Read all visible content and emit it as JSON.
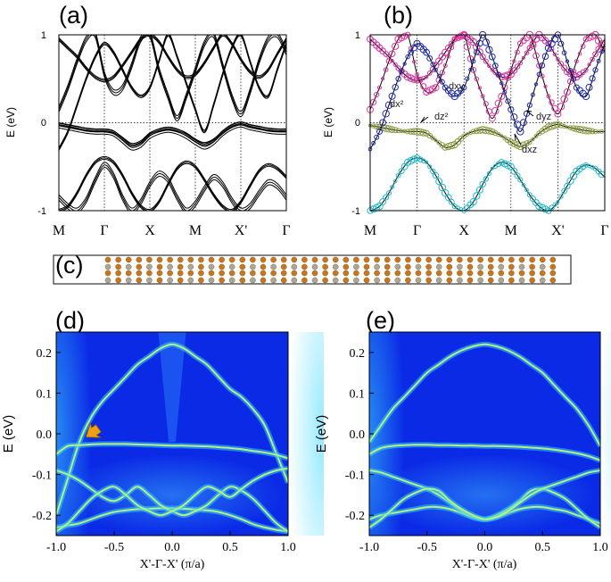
{
  "figure": {
    "panel_labels": [
      "(a)",
      "(b)",
      "(c)",
      "(d)",
      "(e)"
    ],
    "energy_axis_label": "E (eV)",
    "kpath_labels": [
      "M",
      "Γ",
      "X",
      "M",
      "X'",
      "Γ"
    ],
    "slab_colors": {
      "orange": "#c8761e",
      "gray": "#a8a89a"
    },
    "map_colors": {
      "background": "#0a2ae6",
      "band": "#b8f07a",
      "glow": "#33c8ff"
    }
  },
  "chart_data": [
    {
      "panel": "(a)",
      "type": "line",
      "title": "",
      "xlabel": "",
      "ylabel": "E (eV)",
      "ylim": [
        -1,
        1
      ],
      "y_ticks": [
        -1,
        0,
        1
      ],
      "x_tick_labels": [
        "M",
        "Γ",
        "X",
        "M",
        "X'",
        "Γ"
      ],
      "x": [
        0,
        0.2,
        0.4,
        0.6,
        0.8,
        1.0,
        1.2,
        1.4,
        1.6,
        1.8,
        2.0,
        2.2,
        2.4,
        2.6,
        2.8,
        3.0,
        3.2,
        3.4,
        3.6,
        3.8,
        4.0,
        4.2,
        4.4,
        4.6,
        4.8,
        5.0
      ],
      "series": [
        {
          "name": "band1",
          "values": [
            -0.03,
            -0.05,
            -0.07,
            -0.09,
            -0.1,
            -0.1,
            -0.12,
            -0.2,
            -0.28,
            -0.25,
            -0.15,
            -0.1,
            -0.08,
            -0.1,
            -0.15,
            -0.22,
            -0.27,
            -0.22,
            -0.12,
            -0.05,
            -0.02,
            -0.05,
            -0.07,
            -0.09,
            -0.1,
            -0.1
          ]
        },
        {
          "name": "band2",
          "values": [
            -0.02,
            -0.04,
            -0.06,
            -0.08,
            -0.09,
            -0.09,
            -0.11,
            -0.18,
            -0.25,
            -0.22,
            -0.13,
            -0.09,
            -0.07,
            -0.09,
            -0.13,
            -0.2,
            -0.24,
            -0.2,
            -0.11,
            -0.04,
            -0.01,
            -0.04,
            -0.06,
            -0.08,
            -0.09,
            -0.09
          ]
        },
        {
          "name": "band3",
          "values": [
            -0.3,
            -0.1,
            0.2,
            0.5,
            0.75,
            0.9,
            0.8,
            0.6,
            0.4,
            0.3,
            0.4,
            0.7,
            1.0,
            0.75,
            0.45,
            0.15,
            -0.1,
            0.2,
            0.55,
            0.85,
            1.0,
            0.7,
            0.4,
            0.3,
            0.6,
            0.9
          ]
        },
        {
          "name": "band4",
          "values": [
            0.15,
            0.4,
            0.7,
            0.95,
            1.0,
            0.55,
            0.35,
            0.4,
            0.65,
            0.95,
            1.0,
            0.6,
            0.3,
            0.05,
            0.3,
            0.6,
            0.9,
            1.0,
            0.65,
            0.3,
            0.1,
            0.35,
            0.7,
            0.95,
            1.0,
            0.8
          ]
        },
        {
          "name": "band5",
          "values": [
            0.95,
            0.85,
            0.75,
            0.62,
            0.52,
            0.48,
            0.52,
            0.65,
            0.8,
            0.95,
            1.0,
            0.92,
            0.75,
            0.6,
            0.52,
            0.55,
            0.68,
            0.85,
            1.0,
            0.9,
            0.72,
            0.58,
            0.52,
            0.6,
            0.78,
            0.95
          ]
        },
        {
          "name": "band6",
          "values": [
            -1.0,
            -0.95,
            -0.8,
            -0.6,
            -0.45,
            -0.4,
            -0.45,
            -0.6,
            -0.8,
            -0.95,
            -1.0,
            -0.9,
            -0.7,
            -0.52,
            -0.45,
            -0.5,
            -0.65,
            -0.82,
            -0.95,
            -1.0,
            -0.9,
            -0.72,
            -0.55,
            -0.48,
            -0.52,
            -0.62
          ]
        },
        {
          "name": "band7",
          "values": [
            -0.85,
            -0.95,
            -1.0,
            -0.88,
            -0.65,
            -0.48,
            -0.6,
            -0.85,
            -1.0,
            -0.9,
            -0.7,
            -0.58,
            -0.65,
            -0.85,
            -1.0,
            -0.92,
            -0.75,
            -0.62,
            -0.7,
            -0.88,
            -1.0,
            -0.95,
            -0.8,
            -0.68,
            -0.72,
            -0.85
          ]
        }
      ]
    },
    {
      "panel": "(b)",
      "type": "scatter",
      "title": "",
      "xlabel": "",
      "ylabel": "E (eV)",
      "ylim": [
        -1,
        1
      ],
      "y_ticks": [
        -1,
        0,
        1
      ],
      "x_tick_labels": [
        "M",
        "Γ",
        "X",
        "M",
        "X'",
        "Γ"
      ],
      "orbital_labels": [
        "dx²",
        "dz²",
        "dxy",
        "dyz",
        "dxz"
      ],
      "orbital_colors": {
        "dx²": "#e1339a",
        "dz²": "#8b9a3c",
        "dxy": "#d52ca0",
        "dyz": "#e0e030",
        "dxz": "#1a2ab8",
        "dxz_alt": "#1ab8c8"
      },
      "x": [
        0,
        0.2,
        0.4,
        0.6,
        0.8,
        1.0,
        1.2,
        1.4,
        1.6,
        1.8,
        2.0,
        2.2,
        2.4,
        2.6,
        2.8,
        3.0,
        3.2,
        3.4,
        3.6,
        3.8,
        4.0,
        4.2,
        4.4,
        4.6,
        4.8,
        5.0
      ],
      "series": [
        {
          "name": "dz2_flat",
          "values": [
            -0.03,
            -0.05,
            -0.07,
            -0.09,
            -0.1,
            -0.1,
            -0.12,
            -0.2,
            -0.28,
            -0.25,
            -0.15,
            -0.1,
            -0.08,
            -0.1,
            -0.15,
            -0.22,
            -0.27,
            -0.22,
            -0.12,
            -0.05,
            -0.02,
            -0.05,
            -0.07,
            -0.09,
            -0.1,
            -0.1
          ]
        },
        {
          "name": "dxy_band",
          "values": [
            0.95,
            0.85,
            0.75,
            0.62,
            0.52,
            0.48,
            0.52,
            0.65,
            0.8,
            0.95,
            1.0,
            0.92,
            0.75,
            0.6,
            0.52,
            0.55,
            0.68,
            0.85,
            1.0,
            0.9,
            0.72,
            0.58,
            0.52,
            0.6,
            0.78,
            0.95
          ]
        },
        {
          "name": "dx2_band",
          "values": [
            0.15,
            0.4,
            0.7,
            0.95,
            1.0,
            0.55,
            0.35,
            0.4,
            0.65,
            0.95,
            1.0,
            0.6,
            0.3,
            0.05,
            0.3,
            0.6,
            0.9,
            1.0,
            0.65,
            0.3,
            0.1,
            0.35,
            0.7,
            0.95,
            1.0,
            0.8
          ]
        },
        {
          "name": "dyz_band",
          "values": [
            -0.3,
            -0.1,
            0.2,
            0.5,
            0.75,
            0.9,
            0.8,
            0.6,
            0.4,
            0.3,
            0.4,
            0.7,
            1.0,
            0.75,
            0.45,
            0.15,
            -0.1,
            0.2,
            0.55,
            0.85,
            1.0,
            0.7,
            0.4,
            0.3,
            0.6,
            0.9
          ]
        },
        {
          "name": "dxz_lower",
          "values": [
            -1.0,
            -0.95,
            -0.8,
            -0.6,
            -0.45,
            -0.4,
            -0.45,
            -0.6,
            -0.8,
            -0.95,
            -1.0,
            -0.9,
            -0.7,
            -0.52,
            -0.45,
            -0.5,
            -0.65,
            -0.82,
            -0.95,
            -1.0,
            -0.9,
            -0.72,
            -0.55,
            -0.48,
            -0.52,
            -0.62
          ]
        }
      ]
    },
    {
      "panel": "(d)",
      "type": "heatmap",
      "title": "",
      "xlabel": "X'-Γ-X' (π/a)",
      "ylabel": "E (eV)",
      "xlim": [
        -1.0,
        1.0
      ],
      "ylim": [
        -0.25,
        0.25
      ],
      "x_ticks": [
        "-1.0",
        "-0.5",
        "0.0",
        "0.5",
        "1.0"
      ],
      "y_ticks": [
        "-0.2",
        "-0.1",
        "0.0",
        "0.1",
        "0.2"
      ],
      "annotation": "arrow at k≈-0.7, E≈-0.03",
      "x": [
        -1.0,
        -0.9,
        -0.8,
        -0.7,
        -0.6,
        -0.5,
        -0.4,
        -0.3,
        -0.2,
        -0.1,
        0.0,
        0.1,
        0.2,
        0.3,
        0.4,
        0.5,
        0.6,
        0.7,
        0.8,
        0.9,
        1.0
      ],
      "series": [
        {
          "name": "edge_state_dome",
          "values": [
            -0.2,
            -0.11,
            -0.02,
            0.04,
            0.08,
            0.11,
            0.14,
            0.17,
            0.19,
            0.21,
            0.22,
            0.21,
            0.19,
            0.17,
            0.14,
            0.11,
            0.09,
            0.06,
            0.02,
            -0.05,
            -0.12
          ]
        },
        {
          "name": "flat_band",
          "values": [
            -0.05,
            -0.03,
            -0.028,
            -0.026,
            -0.025,
            -0.025,
            -0.025,
            -0.026,
            -0.027,
            -0.028,
            -0.029,
            -0.029,
            -0.03,
            -0.031,
            -0.033,
            -0.035,
            -0.038,
            -0.042,
            -0.046,
            -0.052,
            -0.06
          ]
        },
        {
          "name": "lower_dome",
          "values": [
            -0.23,
            -0.225,
            -0.22,
            -0.21,
            -0.2,
            -0.192,
            -0.188,
            -0.185,
            -0.184,
            -0.183,
            -0.183,
            -0.184,
            -0.186,
            -0.188,
            -0.192,
            -0.2,
            -0.21,
            -0.222,
            -0.23,
            -0.236,
            -0.24
          ]
        },
        {
          "name": "crossing_left",
          "values": [
            -0.09,
            -0.1,
            -0.115,
            -0.135,
            -0.155,
            -0.165,
            -0.15,
            -0.13,
            -0.15,
            -0.175,
            -0.19,
            -0.2,
            -0.19,
            -0.175,
            -0.15,
            -0.13,
            -0.14,
            -0.16,
            -0.19,
            -0.22,
            -0.24
          ]
        },
        {
          "name": "crossing_right",
          "values": [
            -0.24,
            -0.22,
            -0.19,
            -0.16,
            -0.14,
            -0.13,
            -0.15,
            -0.175,
            -0.19,
            -0.2,
            -0.19,
            -0.175,
            -0.15,
            -0.13,
            -0.14,
            -0.155,
            -0.135,
            -0.115,
            -0.1,
            -0.09,
            -0.085
          ]
        }
      ]
    },
    {
      "panel": "(e)",
      "type": "heatmap",
      "title": "",
      "xlabel": "X'-Γ-X' (π/a)",
      "ylabel": "E (eV)",
      "xlim": [
        -1.0,
        1.0
      ],
      "ylim": [
        -0.25,
        0.25
      ],
      "x_ticks": [
        "-1.0",
        "-0.5",
        "0.0",
        "0.5",
        "1.0"
      ],
      "y_ticks": [
        "-0.2",
        "-0.1",
        "0.0",
        "0.1",
        "0.2"
      ],
      "x": [
        -1.0,
        -0.9,
        -0.8,
        -0.7,
        -0.6,
        -0.5,
        -0.4,
        -0.3,
        -0.2,
        -0.1,
        0.0,
        0.1,
        0.2,
        0.3,
        0.4,
        0.5,
        0.6,
        0.7,
        0.8,
        0.9,
        1.0
      ],
      "series": [
        {
          "name": "edge_state_dome",
          "values": [
            -0.02,
            0.02,
            0.06,
            0.09,
            0.12,
            0.15,
            0.17,
            0.19,
            0.205,
            0.215,
            0.22,
            0.215,
            0.205,
            0.19,
            0.17,
            0.15,
            0.12,
            0.09,
            0.06,
            0.02,
            -0.03
          ]
        },
        {
          "name": "flat_band",
          "values": [
            -0.05,
            -0.035,
            -0.03,
            -0.028,
            -0.027,
            -0.027,
            -0.028,
            -0.028,
            -0.029,
            -0.029,
            -0.03,
            -0.03,
            -0.031,
            -0.032,
            -0.034,
            -0.036,
            -0.039,
            -0.043,
            -0.048,
            -0.055,
            -0.065
          ]
        },
        {
          "name": "lower_dome",
          "values": [
            -0.21,
            -0.2,
            -0.195,
            -0.19,
            -0.185,
            -0.18,
            -0.18,
            -0.185,
            -0.195,
            -0.205,
            -0.21,
            -0.205,
            -0.195,
            -0.185,
            -0.18,
            -0.18,
            -0.185,
            -0.19,
            -0.2,
            -0.21,
            -0.22
          ]
        },
        {
          "name": "crossing_left",
          "values": [
            -0.09,
            -0.095,
            -0.105,
            -0.115,
            -0.125,
            -0.135,
            -0.15,
            -0.17,
            -0.19,
            -0.205,
            -0.21,
            -0.2,
            -0.185,
            -0.165,
            -0.14,
            -0.135,
            -0.145,
            -0.16,
            -0.185,
            -0.21,
            -0.23
          ]
        },
        {
          "name": "crossing_right",
          "values": [
            -0.23,
            -0.21,
            -0.185,
            -0.16,
            -0.145,
            -0.135,
            -0.14,
            -0.165,
            -0.185,
            -0.2,
            -0.21,
            -0.205,
            -0.19,
            -0.17,
            -0.15,
            -0.135,
            -0.125,
            -0.115,
            -0.105,
            -0.095,
            -0.09
          ]
        }
      ]
    }
  ]
}
